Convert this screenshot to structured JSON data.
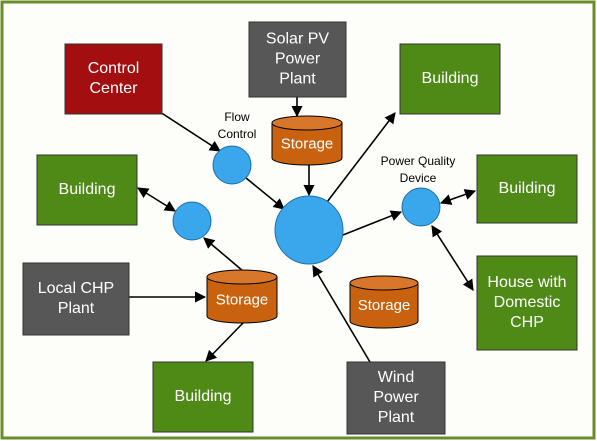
{
  "nodes": [
    {
      "label": [
        "Control",
        "Center"
      ]
    },
    {
      "label": [
        "Solar PV",
        "Power",
        "Plant"
      ]
    },
    {
      "label": [
        "Building"
      ]
    },
    {
      "label": [
        "Building"
      ]
    },
    {
      "label": [
        "Building"
      ]
    },
    {
      "label": [
        "Local CHP",
        "Plant"
      ]
    },
    {
      "label": [
        "House with",
        "Domestic",
        "CHP"
      ]
    },
    {
      "label": [
        "Building"
      ]
    },
    {
      "label": [
        "Wind",
        "Power",
        "Plant"
      ]
    },
    {
      "label": [
        "Storage"
      ]
    },
    {
      "label": [
        "Storage"
      ]
    },
    {
      "label": [
        "Storage"
      ]
    }
  ],
  "labels": [
    {
      "label": [
        "Flow",
        "Control"
      ]
    },
    {
      "label": [
        "Power Quality",
        "Device"
      ]
    }
  ]
}
